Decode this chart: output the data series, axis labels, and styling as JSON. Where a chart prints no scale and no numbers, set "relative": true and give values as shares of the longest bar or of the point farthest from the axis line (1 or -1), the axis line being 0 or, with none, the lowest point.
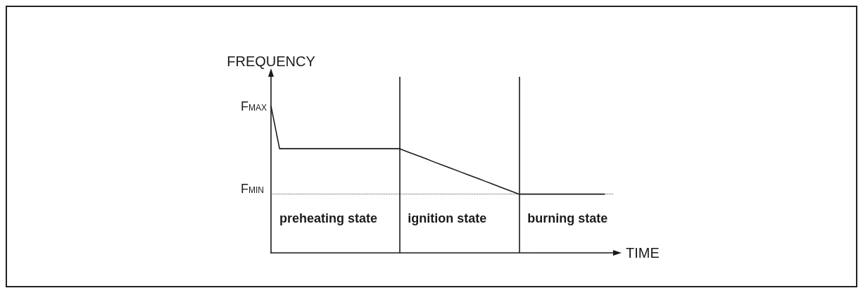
{
  "chart_data": {
    "type": "line",
    "relative": true,
    "ylabel": "FREQUENCY",
    "xlabel": "TIME",
    "categories": [
      null,
      null,
      null,
      null,
      null,
      null,
      null,
      null,
      null,
      null,
      null,
      null,
      null,
      null,
      null,
      null,
      null,
      null,
      null,
      null,
      null,
      null,
      null,
      null,
      null,
      null,
      null,
      null,
      null,
      null,
      null,
      null,
      null,
      null,
      null,
      null,
      null,
      null,
      null,
      null,
      null
    ],
    "series": [
      {
        "color": "#1a1a1a",
        "values": [
          1,
          0.71,
          0.71,
          0.71,
          0.71,
          0.71,
          0.71,
          0.71,
          0.71,
          0.71,
          0.71,
          0.71,
          0.71,
          0.71,
          0.71,
          0.71,
          0.688,
          0.666,
          0.644,
          0.621,
          0.599,
          0.577,
          0.555,
          0.533,
          0.511,
          0.489,
          0.467,
          0.444,
          0.422,
          0.4,
          0.4,
          0.4,
          0.4,
          0.4,
          0.4,
          0.4,
          0.4,
          0.4,
          0.4,
          0.4,
          null
        ]
      }
    ],
    "marker": "none",
    "line_style": "solid",
    "annotations": [
      "F$_{MAX}$",
      "preheating state",
      "ignition state",
      "burning state"
    ],
    "ref_lines": [
      {
        "axis": "y",
        "value": 0.4,
        "label": "F$_{MIN}$",
        "line_style": "dotted",
        "color": "#555555"
      },
      {
        "axis": "x",
        "label": null,
        "line_style": "solid",
        "color": "#1a1a1a"
      },
      {
        "axis": "x",
        "label": null,
        "line_style": "solid",
        "color": "#1a1a1a"
      }
    ]
  }
}
